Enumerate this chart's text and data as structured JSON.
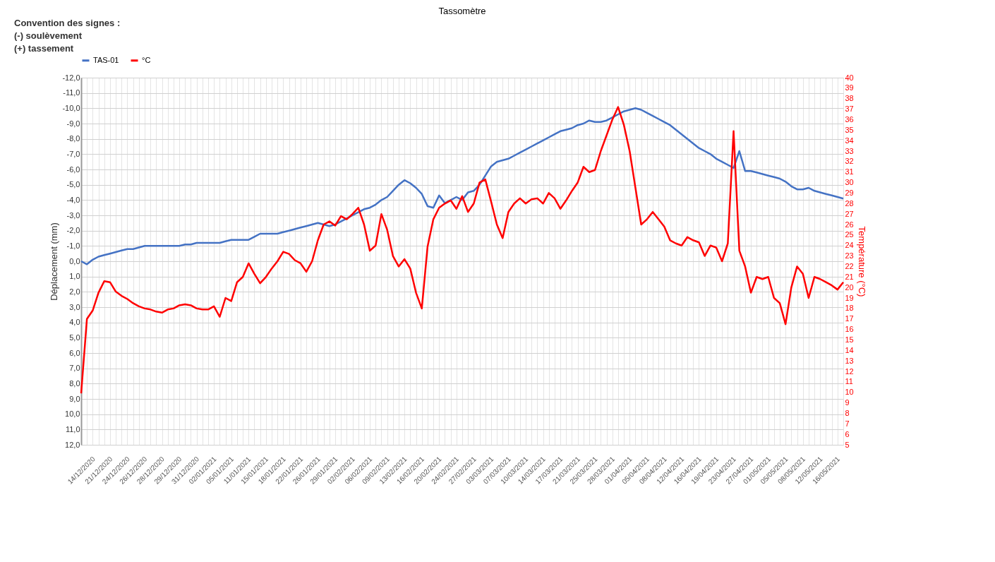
{
  "chart_data": {
    "type": "line",
    "title": "Tassomètre",
    "annotations": [
      "Convention des signes :",
      "(-) soulèvement",
      "(+) tassement"
    ],
    "ylabel": "Déplacement (mm)",
    "y2label": "Température (°C)",
    "categories": [
      "14/12/2020",
      null,
      null,
      "21/12/2020",
      null,
      null,
      "24/12/2020",
      null,
      null,
      "26/12/2020",
      null,
      null,
      "28/12/2020",
      null,
      null,
      "29/12/2020",
      null,
      null,
      "31/12/2020",
      null,
      null,
      "02/01/2021",
      null,
      null,
      "05/01/2021",
      null,
      null,
      "11/01/2021",
      null,
      null,
      "15/01/2021",
      null,
      null,
      "18/01/2021",
      null,
      null,
      "22/01/2021",
      null,
      null,
      "26/01/2021",
      null,
      null,
      "29/01/2021",
      null,
      null,
      "02/02/2021",
      null,
      null,
      "06/02/2021",
      null,
      null,
      "09/02/2021",
      null,
      null,
      "13/02/2021",
      null,
      null,
      "16/02/2021",
      null,
      null,
      "20/02/2021",
      null,
      null,
      "24/02/2021",
      null,
      null,
      "27/02/2021",
      null,
      null,
      "03/03/2021",
      null,
      null,
      "07/03/2021",
      null,
      null,
      "10/03/2021",
      null,
      null,
      "14/03/2021",
      null,
      null,
      "17/03/2021",
      null,
      null,
      "21/03/2021",
      null,
      null,
      "25/03/2021",
      null,
      null,
      "28/03/2021",
      null,
      null,
      "01/04/2021",
      null,
      null,
      "05/04/2021",
      null,
      null,
      "08/04/2021",
      null,
      null,
      "12/04/2021",
      null,
      null,
      "16/04/2021",
      null,
      null,
      "19/04/2021",
      null,
      null,
      "23/04/2021",
      null,
      null,
      "27/04/2021",
      null,
      null,
      "01/05/2021",
      null,
      null,
      "05/05/2021",
      null,
      null,
      "08/05/2021",
      null,
      null,
      "12/05/2021",
      null,
      null,
      "16/05/2021",
      null,
      null,
      null
    ],
    "series": [
      {
        "name": "TAS-01",
        "color": "#4472c4",
        "values": [
          0.0,
          0.2,
          -0.1,
          -0.3,
          -0.4,
          -0.5,
          -0.6,
          -0.7,
          -0.8,
          -0.8,
          -0.9,
          -1.0,
          -1.0,
          -1.0,
          -1.0,
          -1.0,
          -1.0,
          -1.0,
          -1.1,
          -1.1,
          -1.2,
          -1.2,
          -1.2,
          -1.2,
          -1.2,
          -1.3,
          -1.4,
          -1.4,
          -1.4,
          -1.4,
          -1.6,
          -1.8,
          -1.8,
          -1.8,
          -1.8,
          -1.9,
          -2.0,
          -2.1,
          -2.2,
          -2.3,
          -2.4,
          -2.5,
          -2.4,
          -2.3,
          -2.4,
          -2.6,
          -2.8,
          -3.0,
          -3.2,
          -3.4,
          -3.5,
          -3.7,
          -4.0,
          -4.2,
          -4.6,
          -5.0,
          -5.3,
          -5.1,
          -4.8,
          -4.4,
          -3.6,
          -3.5,
          -4.3,
          -3.8,
          -4.0,
          -4.2,
          -4.0,
          -4.5,
          -4.6,
          -5.0,
          -5.6,
          -6.2,
          -6.5,
          -6.6,
          -6.7,
          -6.9,
          -7.1,
          -7.3,
          -7.5,
          -7.7,
          -7.9,
          -8.1,
          -8.3,
          -8.5,
          -8.6,
          -8.7,
          -8.9,
          -9.0,
          -9.2,
          -9.1,
          -9.1,
          -9.2,
          -9.4,
          -9.6,
          -9.8,
          -9.9,
          -10.0,
          -9.9,
          -9.7,
          -9.5,
          -9.3,
          -9.1,
          -8.9,
          -8.6,
          -8.3,
          -8.0,
          -7.7,
          -7.4,
          -7.2,
          -7.0,
          -6.7,
          -6.5,
          -6.3,
          -6.1,
          -7.2,
          -5.9,
          -5.9,
          -5.8,
          -5.7,
          -5.6,
          -5.5,
          -5.4,
          -5.2,
          -4.9,
          -4.7,
          -4.7,
          -4.8,
          -4.6,
          -4.5,
          -4.4,
          -4.3,
          -4.2,
          -4.1
        ]
      },
      {
        "name": "°C",
        "color": "#ff0000",
        "axis": "y2",
        "values": [
          9.9,
          17.0,
          17.8,
          19.5,
          20.6,
          20.5,
          19.6,
          19.2,
          18.9,
          18.5,
          18.2,
          18.0,
          17.9,
          17.7,
          17.6,
          17.9,
          18.0,
          18.3,
          18.4,
          18.3,
          18.0,
          17.9,
          17.9,
          18.2,
          17.2,
          19.0,
          18.7,
          20.5,
          21.0,
          22.3,
          21.3,
          20.4,
          21.0,
          21.8,
          22.5,
          23.4,
          23.2,
          22.6,
          22.3,
          21.5,
          22.5,
          24.5,
          26.0,
          26.3,
          25.9,
          26.8,
          26.5,
          27.0,
          27.6,
          26.0,
          23.5,
          24.0,
          27.0,
          25.5,
          23.0,
          22.0,
          22.7,
          21.8,
          19.5,
          18.0,
          23.9,
          26.5,
          27.6,
          28.0,
          28.3,
          27.5,
          28.7,
          27.2,
          28.0,
          30.0,
          30.3,
          28.2,
          26.0,
          24.7,
          27.2,
          28.0,
          28.5,
          28.0,
          28.4,
          28.5,
          28.0,
          29.0,
          28.5,
          27.5,
          28.3,
          29.2,
          30.0,
          31.5,
          31.0,
          31.2,
          33.0,
          34.5,
          36.0,
          37.2,
          35.5,
          33.0,
          29.5,
          26.0,
          26.5,
          27.2,
          26.5,
          25.8,
          24.5,
          24.2,
          24.0,
          24.8,
          24.5,
          24.3,
          23.0,
          24.0,
          23.8,
          22.5,
          24.2,
          34.9,
          23.5,
          22.0,
          19.5,
          21.0,
          20.8,
          21.0,
          19.0,
          18.5,
          16.5,
          20.0,
          22.0,
          21.3,
          19.0,
          21.0,
          20.8,
          20.5,
          20.2,
          19.8,
          20.5
        ]
      }
    ],
    "ylim": [
      12,
      -12
    ],
    "yticks": [
      {
        "value": 12,
        "label": "12,0"
      },
      {
        "value": 11,
        "label": "11,0"
      },
      {
        "value": 10,
        "label": "10,0"
      },
      {
        "value": 9,
        "label": "9,0"
      },
      {
        "value": 8,
        "label": "8,0"
      },
      {
        "value": 7,
        "label": "7,0"
      },
      {
        "value": 6,
        "label": "6,0"
      },
      {
        "value": 5,
        "label": "5,0"
      },
      {
        "value": 4,
        "label": "4,0"
      },
      {
        "value": 3,
        "label": "3,0"
      },
      {
        "value": 2,
        "label": "2,0"
      },
      {
        "value": 1,
        "label": "1,0"
      },
      {
        "value": 0,
        "label": "0,0"
      },
      {
        "value": -1,
        "label": "-1,0"
      },
      {
        "value": -2,
        "label": "-2,0"
      },
      {
        "value": -3,
        "label": "-3,0"
      },
      {
        "value": -4,
        "label": "-4,0"
      },
      {
        "value": -5,
        "label": "-5,0"
      },
      {
        "value": -6,
        "label": "-6,0"
      },
      {
        "value": -7,
        "label": "-7,0"
      },
      {
        "value": -8,
        "label": "-8,0"
      },
      {
        "value": -9,
        "label": "-9,0"
      },
      {
        "value": -10,
        "label": "-10,0"
      },
      {
        "value": -11,
        "label": "-11,0"
      },
      {
        "value": -12,
        "label": "-12,0"
      }
    ],
    "y2lim": [
      5,
      40
    ],
    "y2ticks": [
      5,
      6,
      7,
      8,
      9,
      10,
      11,
      12,
      13,
      14,
      15,
      16,
      17,
      18,
      19,
      20,
      21,
      22,
      23,
      24,
      25,
      26,
      27,
      28,
      29,
      30,
      31,
      32,
      33,
      34,
      35,
      36,
      37,
      38,
      39,
      40
    ],
    "grid": true,
    "legend": "top",
    "marker": "none",
    "line_style": "solid"
  }
}
